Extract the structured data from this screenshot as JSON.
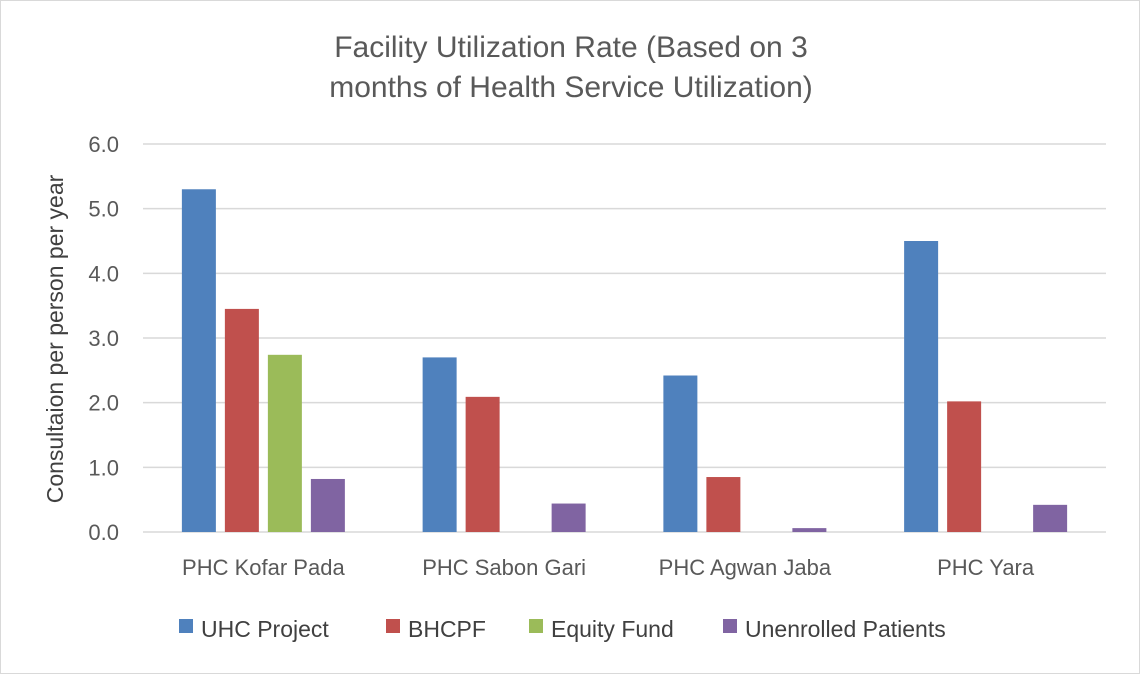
{
  "chart_data": {
    "type": "bar",
    "title_lines": [
      "Facility Utilization Rate (Based on 3",
      "months of Health Service Utilization)"
    ],
    "ylabel": "Consultaion per person per year",
    "xlabel": "",
    "ylim": [
      0,
      6
    ],
    "yticks": [
      "0.0",
      "1.0",
      "2.0",
      "3.0",
      "4.0",
      "5.0",
      "6.0"
    ],
    "grid": true,
    "legend_position": "bottom",
    "categories": [
      "PHC Kofar Pada",
      "PHC Sabon Gari",
      "PHC Agwan Jaba",
      "PHC Yara"
    ],
    "series": [
      {
        "name": "UHC Project",
        "color": "#4f81bd",
        "values": [
          5.3,
          2.7,
          2.42,
          4.5
        ]
      },
      {
        "name": "BHCPF",
        "color": "#c0504d",
        "values": [
          3.45,
          2.09,
          0.85,
          2.02
        ]
      },
      {
        "name": "Equity Fund",
        "color": "#9bbb59",
        "values": [
          2.74,
          null,
          null,
          null
        ]
      },
      {
        "name": "Unenrolled Patients",
        "color": "#8064a2",
        "values": [
          0.82,
          0.44,
          0.06,
          0.42
        ]
      }
    ]
  }
}
